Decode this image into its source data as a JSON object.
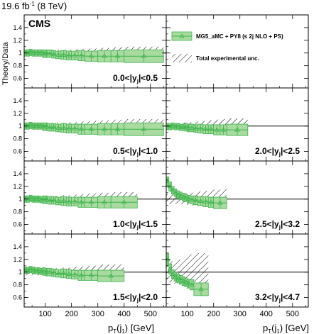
{
  "header": {
    "lumi": "19.6 fb",
    "lumi_sup": "-1",
    "energy": " (8 TeV)",
    "experiment": "CMS"
  },
  "legend": {
    "model": "MG5_aMC + PY8 (≤ 2j NLO + PS)",
    "unc": "Total experimental unc."
  },
  "colors": {
    "model_fill": "#a9dba1",
    "model_line": "#3cb44b",
    "frame": "#000000"
  },
  "chart_data": {
    "type": "scatter",
    "ylabel": "Theory/Data",
    "xlabel": "pᵀ(j₁) [GeV]",
    "xlabel_parts": {
      "main": "p",
      "sub1": "T",
      "mid": "(j",
      "sub2": "1",
      "end": ") [GeV]"
    },
    "xlim": [
      20,
      560
    ],
    "ylim": [
      0.45,
      1.6
    ],
    "yticks": [
      "0.6",
      "0.8",
      "1",
      "1.2",
      "1.4"
    ],
    "ytick_values": [
      0.6,
      0.8,
      1.0,
      1.2,
      1.4
    ],
    "xticks": [
      "100",
      "200",
      "300",
      "400",
      "500"
    ],
    "xtick_values": [
      100,
      200,
      300,
      400,
      500
    ],
    "reference_line": 1.0,
    "panels": [
      {
        "label": "0.0<|y",
        "label_sub": "j",
        "label_end": "|<0.5",
        "edges": [
          20,
          30,
          40,
          50,
          60,
          70,
          80,
          90,
          100,
          110,
          125,
          140,
          160,
          180,
          200,
          225,
          250,
          300,
          350,
          400,
          550
        ],
        "theory": [
          1.0,
          1.0,
          1.01,
          1.0,
          1.0,
          1.0,
          1.0,
          0.99,
          0.99,
          0.99,
          0.98,
          0.97,
          0.97,
          0.96,
          0.96,
          0.96,
          0.95,
          0.95,
          0.95,
          0.95
        ],
        "theory_unc": [
          0.05,
          0.05,
          0.05,
          0.05,
          0.05,
          0.05,
          0.05,
          0.06,
          0.06,
          0.06,
          0.06,
          0.06,
          0.07,
          0.07,
          0.07,
          0.08,
          0.08,
          0.09,
          0.09,
          0.1
        ],
        "exp_unc": [
          0.04,
          0.04,
          0.04,
          0.04,
          0.04,
          0.04,
          0.04,
          0.04,
          0.04,
          0.04,
          0.05,
          0.05,
          0.05,
          0.05,
          0.06,
          0.06,
          0.07,
          0.08,
          0.09,
          0.1
        ]
      },
      {
        "label": "",
        "label_sub": "",
        "label_end": "",
        "legend_panel": true
      },
      {
        "label": "0.5<|y",
        "label_sub": "j",
        "label_end": "|<1.0",
        "edges": [
          20,
          30,
          40,
          50,
          60,
          70,
          80,
          90,
          100,
          110,
          125,
          140,
          160,
          180,
          200,
          225,
          250,
          300,
          350,
          400,
          550
        ],
        "theory": [
          1.0,
          1.0,
          1.01,
          1.0,
          1.0,
          1.0,
          1.0,
          0.99,
          0.99,
          0.98,
          0.98,
          0.97,
          0.97,
          0.96,
          0.96,
          0.95,
          0.95,
          0.95,
          0.95,
          0.95
        ],
        "theory_unc": [
          0.05,
          0.05,
          0.05,
          0.05,
          0.05,
          0.05,
          0.05,
          0.06,
          0.06,
          0.06,
          0.06,
          0.06,
          0.07,
          0.07,
          0.07,
          0.08,
          0.08,
          0.09,
          0.09,
          0.1
        ],
        "exp_unc": [
          0.04,
          0.04,
          0.04,
          0.04,
          0.04,
          0.04,
          0.04,
          0.04,
          0.04,
          0.04,
          0.05,
          0.05,
          0.05,
          0.06,
          0.06,
          0.07,
          0.08,
          0.09,
          0.1,
          0.11
        ]
      },
      {
        "label": "2.0<|y",
        "label_sub": "j",
        "label_end": "|<2.5",
        "edges": [
          20,
          30,
          40,
          50,
          60,
          70,
          80,
          90,
          100,
          110,
          125,
          140,
          160,
          180,
          200,
          225,
          250,
          330
        ],
        "theory": [
          0.99,
          0.99,
          1.0,
          0.99,
          0.99,
          0.98,
          0.98,
          0.98,
          0.97,
          0.97,
          0.96,
          0.96,
          0.95,
          0.95,
          0.94,
          0.94,
          0.94
        ],
        "theory_unc": [
          0.05,
          0.05,
          0.05,
          0.05,
          0.05,
          0.05,
          0.05,
          0.06,
          0.06,
          0.06,
          0.06,
          0.07,
          0.07,
          0.07,
          0.08,
          0.08,
          0.09
        ],
        "exp_unc": [
          0.05,
          0.05,
          0.05,
          0.05,
          0.05,
          0.05,
          0.05,
          0.06,
          0.06,
          0.06,
          0.07,
          0.07,
          0.08,
          0.09,
          0.1,
          0.11,
          0.12
        ]
      },
      {
        "label": "1.0<|y",
        "label_sub": "j",
        "label_end": "|<1.5",
        "edges": [
          20,
          30,
          40,
          50,
          60,
          70,
          80,
          90,
          100,
          110,
          125,
          140,
          160,
          180,
          200,
          225,
          250,
          300,
          350,
          450
        ],
        "theory": [
          1.0,
          1.0,
          1.01,
          1.0,
          1.0,
          1.0,
          0.99,
          0.99,
          0.99,
          0.98,
          0.98,
          0.97,
          0.97,
          0.96,
          0.96,
          0.95,
          0.95,
          0.95,
          0.95
        ],
        "theory_unc": [
          0.05,
          0.05,
          0.05,
          0.05,
          0.05,
          0.05,
          0.05,
          0.06,
          0.06,
          0.06,
          0.06,
          0.06,
          0.07,
          0.07,
          0.07,
          0.08,
          0.08,
          0.09,
          0.09
        ],
        "exp_unc": [
          0.04,
          0.04,
          0.04,
          0.04,
          0.04,
          0.04,
          0.04,
          0.05,
          0.05,
          0.05,
          0.05,
          0.05,
          0.06,
          0.06,
          0.07,
          0.08,
          0.09,
          0.1,
          0.11
        ]
      },
      {
        "label": "2.5<|y",
        "label_sub": "j",
        "label_end": "|<3.2",
        "edges": [
          20,
          30,
          40,
          50,
          60,
          70,
          80,
          90,
          100,
          110,
          125,
          140,
          160,
          180,
          200,
          250
        ],
        "theory": [
          1.28,
          1.2,
          1.14,
          1.1,
          1.07,
          1.05,
          1.03,
          1.02,
          1.0,
          0.99,
          0.98,
          0.97,
          0.96,
          0.95,
          0.94
        ],
        "theory_unc": [
          0.07,
          0.07,
          0.06,
          0.06,
          0.06,
          0.06,
          0.06,
          0.06,
          0.06,
          0.06,
          0.07,
          0.07,
          0.08,
          0.08,
          0.09
        ],
        "exp_unc": [
          0.08,
          0.08,
          0.08,
          0.08,
          0.08,
          0.08,
          0.08,
          0.09,
          0.09,
          0.1,
          0.11,
          0.12,
          0.13,
          0.14,
          0.15
        ]
      },
      {
        "label": "1.5<|y",
        "label_sub": "j",
        "label_end": "|<2.0",
        "edges": [
          20,
          30,
          40,
          50,
          60,
          70,
          80,
          90,
          100,
          110,
          125,
          140,
          160,
          180,
          200,
          225,
          250,
          300,
          400
        ],
        "theory": [
          1.03,
          1.03,
          1.04,
          1.03,
          1.02,
          1.02,
          1.01,
          1.01,
          1.0,
          1.0,
          0.99,
          0.98,
          0.98,
          0.97,
          0.96,
          0.95,
          0.95,
          0.94
        ],
        "theory_unc": [
          0.05,
          0.05,
          0.05,
          0.05,
          0.05,
          0.05,
          0.05,
          0.06,
          0.06,
          0.06,
          0.06,
          0.06,
          0.07,
          0.07,
          0.07,
          0.08,
          0.08,
          0.09
        ],
        "exp_unc": [
          0.05,
          0.05,
          0.05,
          0.05,
          0.05,
          0.05,
          0.05,
          0.05,
          0.05,
          0.06,
          0.06,
          0.06,
          0.07,
          0.07,
          0.08,
          0.09,
          0.1,
          0.12
        ]
      },
      {
        "label": "3.2<|y",
        "label_sub": "j",
        "label_end": "|<4.7",
        "edges": [
          20,
          30,
          40,
          50,
          60,
          70,
          80,
          90,
          100,
          110,
          125,
          180
        ],
        "theory": [
          1.2,
          1.05,
          0.97,
          0.93,
          0.9,
          0.88,
          0.86,
          0.84,
          0.82,
          0.8,
          0.73
        ],
        "theory_unc": [
          0.1,
          0.08,
          0.07,
          0.07,
          0.07,
          0.07,
          0.07,
          0.07,
          0.07,
          0.08,
          0.1
        ],
        "exp_unc": [
          0.15,
          0.16,
          0.17,
          0.18,
          0.19,
          0.2,
          0.22,
          0.24,
          0.26,
          0.28,
          0.3
        ]
      }
    ]
  }
}
